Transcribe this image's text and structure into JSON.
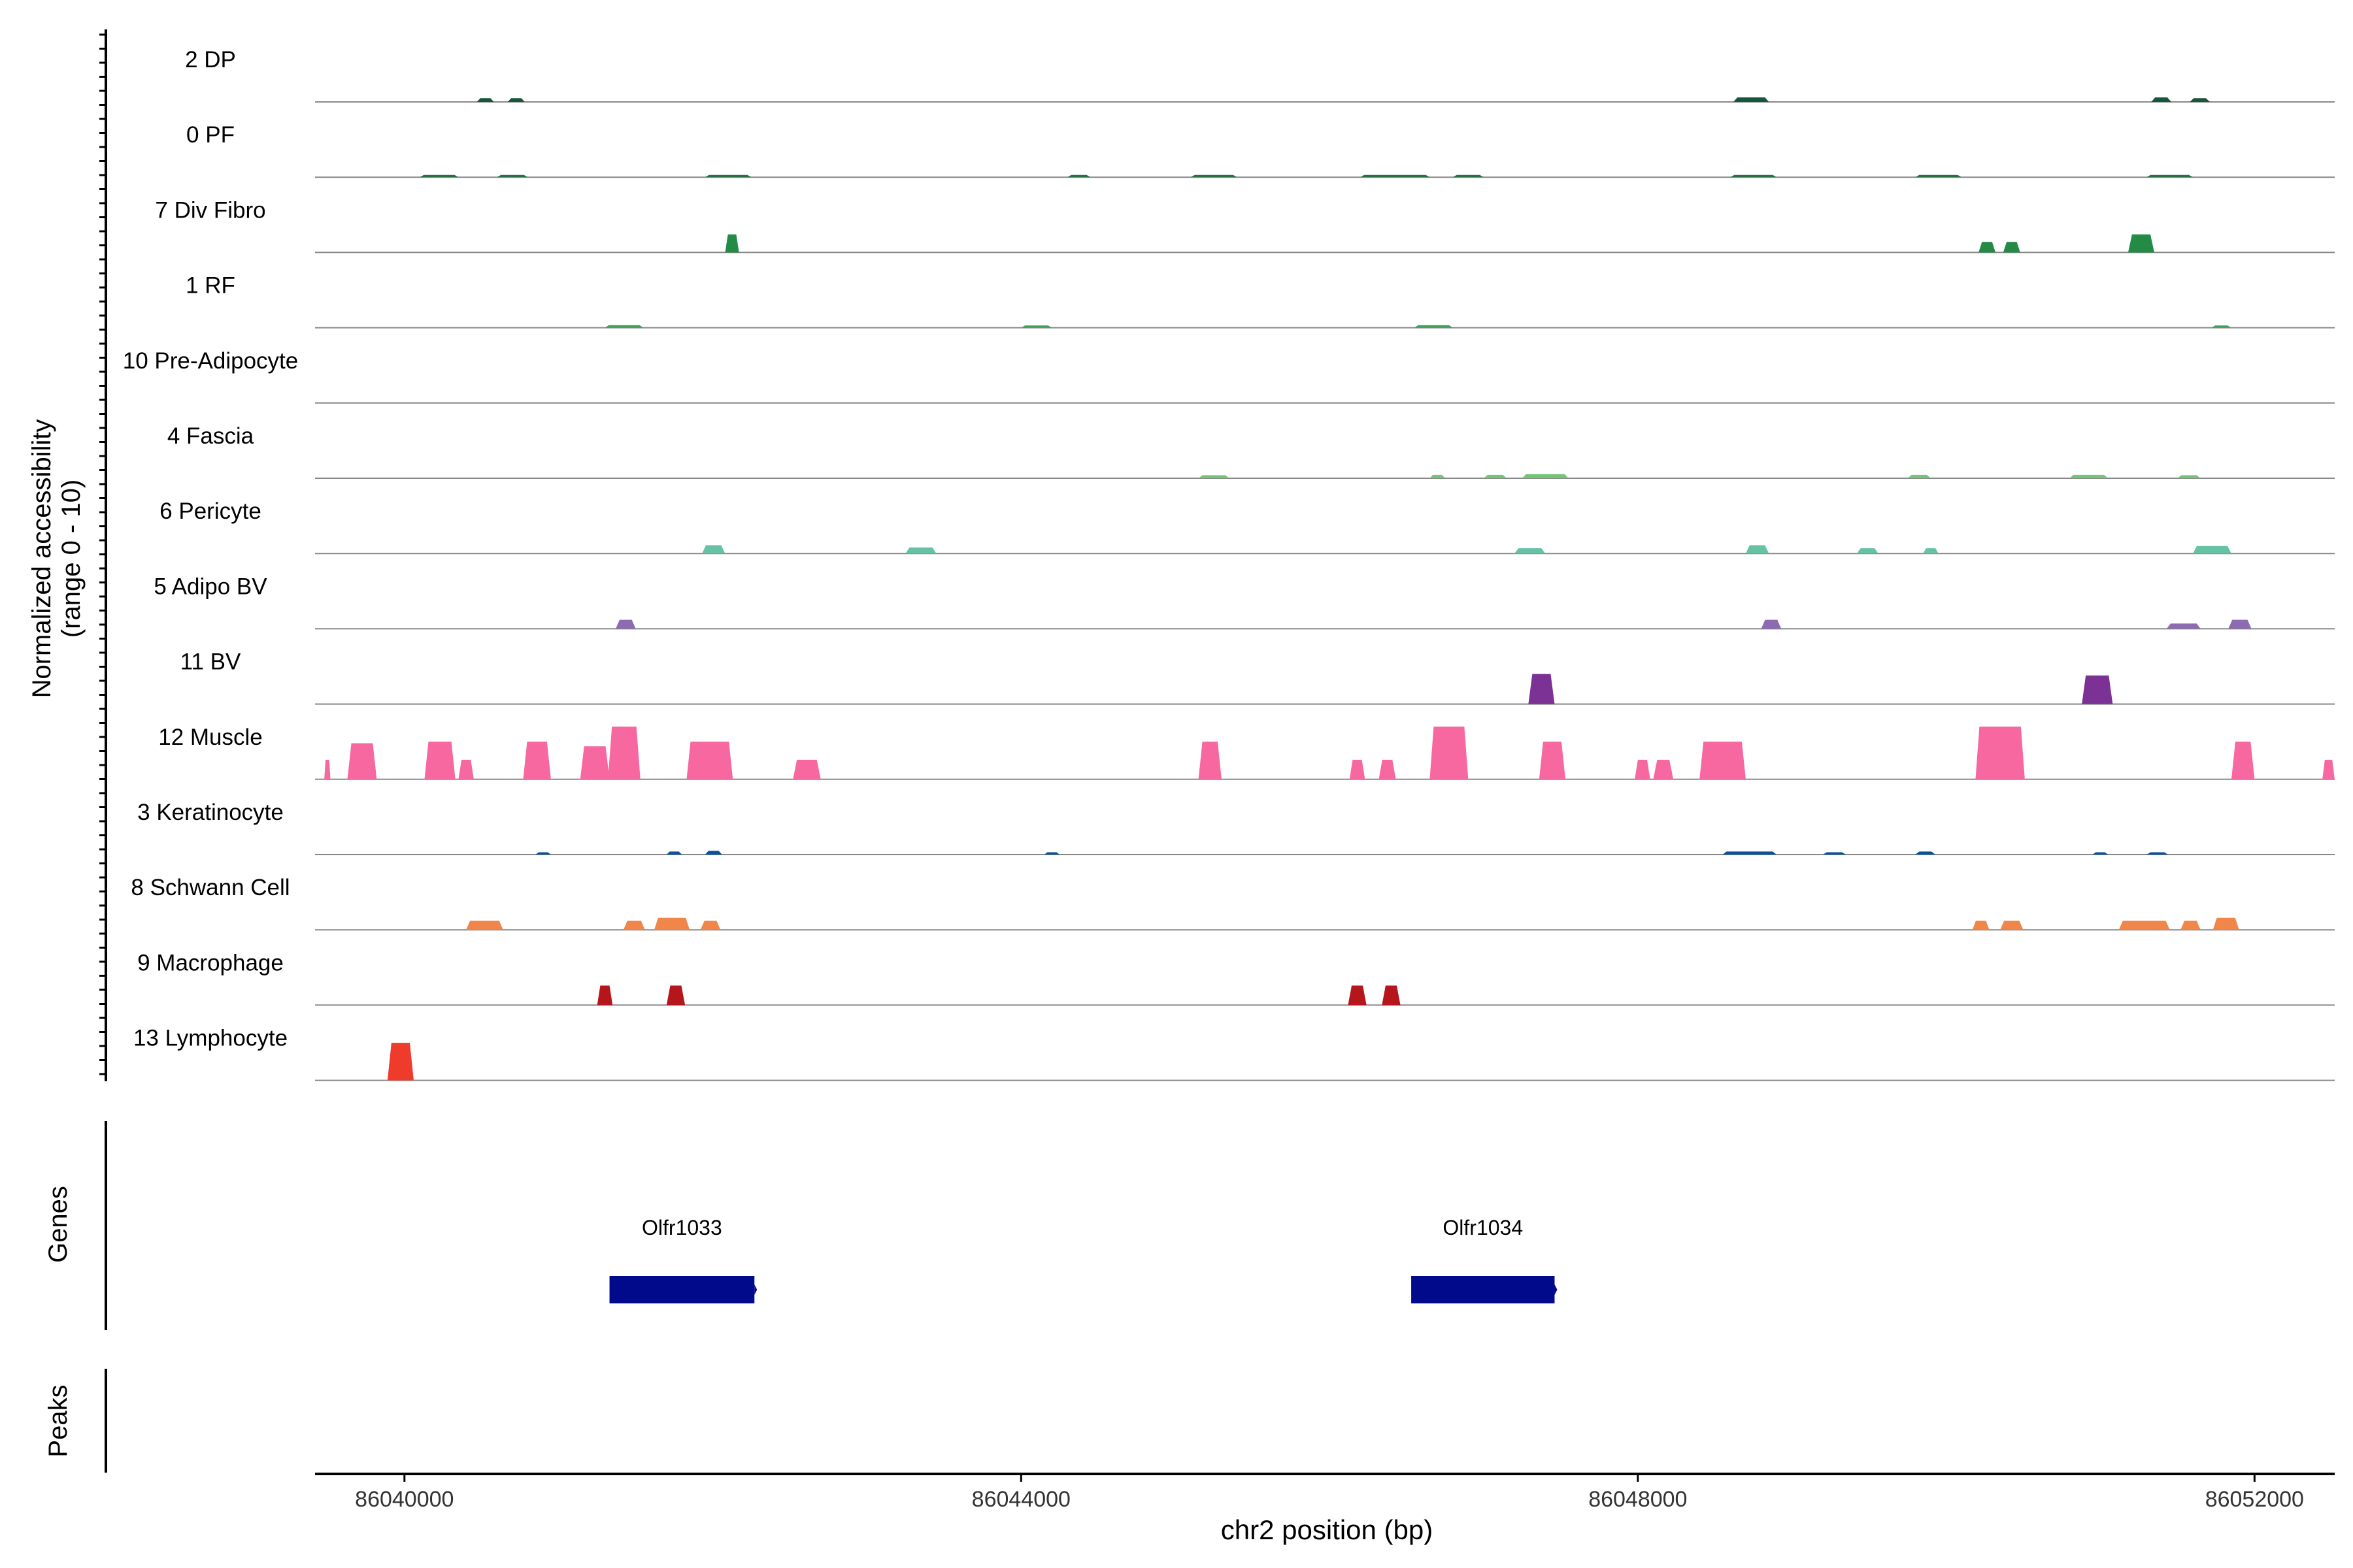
{
  "chart_data": {
    "type": "area",
    "ylabel_line1": "Normalized accessibility",
    "ylabel_line2": "(range 0 - 10)",
    "ylim": [
      0,
      10
    ],
    "xlabel": "chr2 position (bp)",
    "xlim": [
      86039420,
      86052520
    ],
    "xticks": [
      86040000,
      86044000,
      86048000,
      86052000
    ],
    "xtick_labels": [
      "86040000",
      "86044000",
      "86048000",
      "86052000"
    ],
    "tracks": [
      {
        "name": "2 DP",
        "color": "#17563a",
        "peaks": [
          [
            86040470,
            86040580,
            0.5
          ],
          [
            86040670,
            86040780,
            0.5
          ],
          [
            86048620,
            86048850,
            0.6
          ],
          [
            86051330,
            86051460,
            0.6
          ],
          [
            86051580,
            86051710,
            0.5
          ]
        ]
      },
      {
        "name": "0 PF",
        "color": "#2a6e46",
        "peaks": [
          [
            86040100,
            86040350,
            0.3
          ],
          [
            86040600,
            86040800,
            0.3
          ],
          [
            86041950,
            86042250,
            0.3
          ],
          [
            86044300,
            86044450,
            0.3
          ],
          [
            86045100,
            86045400,
            0.3
          ],
          [
            86046200,
            86046650,
            0.3
          ],
          [
            86046800,
            86047000,
            0.3
          ],
          [
            86048600,
            86048900,
            0.3
          ],
          [
            86049800,
            86050100,
            0.3
          ],
          [
            86051300,
            86051600,
            0.3
          ]
        ]
      },
      {
        "name": "7 Div Fibro",
        "color": "#238b45",
        "peaks": [
          [
            86042080,
            86042170,
            2.4
          ],
          [
            86050210,
            86050320,
            1.4
          ],
          [
            86050370,
            86050480,
            1.4
          ],
          [
            86051180,
            86051350,
            2.4
          ]
        ]
      },
      {
        "name": "1 RF",
        "color": "#41a05c",
        "peaks": [
          [
            86041300,
            86041550,
            0.35
          ],
          [
            86044000,
            86044200,
            0.3
          ],
          [
            86046550,
            86046800,
            0.35
          ],
          [
            86051720,
            86051850,
            0.3
          ]
        ]
      },
      {
        "name": "10 Pre-Adipocyte",
        "color": "#5cb370",
        "peaks": []
      },
      {
        "name": "4 Fascia",
        "color": "#74c476",
        "peaks": [
          [
            86046650,
            86046750,
            0.45
          ],
          [
            86047000,
            86047150,
            0.45
          ],
          [
            86047250,
            86047550,
            0.55
          ],
          [
            86045150,
            86045350,
            0.4
          ],
          [
            86049750,
            86049900,
            0.45
          ],
          [
            86050800,
            86051050,
            0.45
          ],
          [
            86051500,
            86051650,
            0.4
          ]
        ]
      },
      {
        "name": "6 Pericyte",
        "color": "#66c2a4",
        "peaks": [
          [
            86041930,
            86042080,
            1.1
          ],
          [
            86043250,
            86043450,
            0.8
          ],
          [
            86047200,
            86047400,
            0.7
          ],
          [
            86048700,
            86048850,
            1.1
          ],
          [
            86049420,
            86049560,
            0.7
          ],
          [
            86049850,
            86049950,
            0.7
          ],
          [
            86051600,
            86051850,
            1.0
          ]
        ]
      },
      {
        "name": "5 Adipo BV",
        "color": "#8c6bb1",
        "peaks": [
          [
            86041370,
            86041500,
            1.2
          ],
          [
            86048800,
            86048930,
            1.2
          ],
          [
            86051430,
            86051650,
            0.7
          ],
          [
            86051830,
            86051980,
            1.2
          ]
        ]
      },
      {
        "name": "11 BV",
        "color": "#7b3294",
        "peaks": [
          [
            86047290,
            86047460,
            4.0
          ],
          [
            86050880,
            86051080,
            3.8
          ]
        ]
      },
      {
        "name": "12 Muscle",
        "color": "#f768a1",
        "peaks": [
          [
            86039480,
            86039520,
            2.6
          ],
          [
            86039630,
            86039820,
            4.8
          ],
          [
            86040130,
            86040330,
            5.0
          ],
          [
            86040350,
            86040450,
            2.6
          ],
          [
            86040770,
            86040950,
            5.0
          ],
          [
            86041140,
            86041330,
            4.4
          ],
          [
            86041320,
            86041530,
            7.0
          ],
          [
            86041830,
            86042130,
            5.0
          ],
          [
            86042520,
            86042700,
            2.6
          ],
          [
            86045150,
            86045300,
            5.0
          ],
          [
            86046130,
            86046230,
            2.6
          ],
          [
            86046320,
            86046430,
            2.6
          ],
          [
            86046650,
            86046900,
            7.0
          ],
          [
            86047360,
            86047530,
            5.0
          ],
          [
            86047980,
            86048080,
            2.6
          ],
          [
            86048100,
            86048230,
            2.6
          ],
          [
            86048400,
            86048700,
            5.0
          ],
          [
            86050190,
            86050510,
            7.0
          ],
          [
            86051850,
            86052000,
            5.0
          ],
          [
            86052440,
            86052520,
            2.6
          ]
        ]
      },
      {
        "name": "3 Keratinocyte",
        "color": "#08519c",
        "peaks": [
          [
            86040850,
            86040950,
            0.3
          ],
          [
            86041700,
            86041800,
            0.4
          ],
          [
            86041950,
            86042060,
            0.5
          ],
          [
            86044150,
            86044250,
            0.3
          ],
          [
            86048550,
            86048900,
            0.4
          ],
          [
            86049200,
            86049350,
            0.3
          ],
          [
            86049800,
            86049930,
            0.4
          ],
          [
            86050950,
            86051050,
            0.3
          ],
          [
            86051300,
            86051440,
            0.3
          ]
        ]
      },
      {
        "name": "8 Schwann Cell",
        "color": "#f0864a",
        "peaks": [
          [
            86040400,
            86040640,
            1.2
          ],
          [
            86041420,
            86041560,
            1.2
          ],
          [
            86041620,
            86041850,
            1.6
          ],
          [
            86041920,
            86042050,
            1.2
          ],
          [
            86050170,
            86050280,
            1.2
          ],
          [
            86050350,
            86050500,
            1.2
          ],
          [
            86051120,
            86051450,
            1.2
          ],
          [
            86051520,
            86051650,
            1.2
          ],
          [
            86051730,
            86051900,
            1.6
          ]
        ]
      },
      {
        "name": "9 Macrophage",
        "color": "#b5161c",
        "peaks": [
          [
            86041250,
            86041350,
            2.6
          ],
          [
            86041700,
            86041820,
            2.6
          ],
          [
            86046120,
            86046240,
            2.6
          ],
          [
            86046340,
            86046460,
            2.6
          ]
        ]
      },
      {
        "name": "13 Lymphocyte",
        "color": "#ef3b2c",
        "peaks": [
          [
            86039890,
            86040060,
            5.0
          ]
        ]
      }
    ],
    "genes_label": "Genes",
    "genes": [
      {
        "name": "Olfr1033",
        "start": 86041330,
        "end": 86042270
      },
      {
        "name": "Olfr1034",
        "start": 86046530,
        "end": 86047460
      }
    ],
    "gene_color": "#000a8b",
    "peaks_label": "Peaks"
  }
}
